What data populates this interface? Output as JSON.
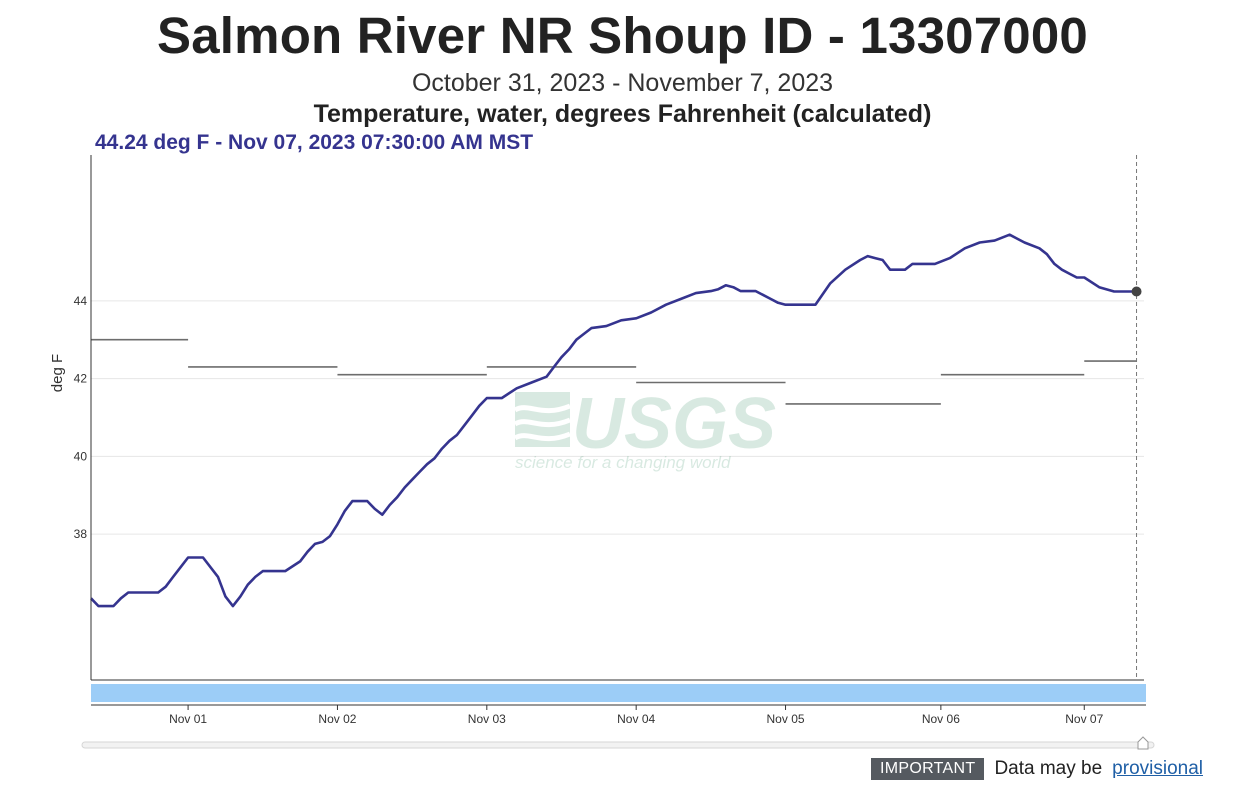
{
  "header": {
    "title": "Salmon River NR Shoup ID - 13307000",
    "date_range": "October 31, 2023 - November 7, 2023",
    "parameter": "Temperature, water, degrees Fahrenheit (calculated)"
  },
  "hover": {
    "readout": "44.24 deg F - Nov 07, 2023 07:30:00 AM MST"
  },
  "watermark": {
    "logo": "USGS",
    "tagline": "science for a changing world"
  },
  "footer": {
    "badge": "IMPORTANT",
    "text": "Data may be",
    "link": "provisional"
  },
  "colors": {
    "series": "#35348f",
    "median": "#6d6d6d",
    "brush": "#9ccdf7",
    "grid": "#e6e6e6"
  },
  "chart_data": {
    "type": "line",
    "title": "Salmon River NR Shoup ID - 13307000",
    "ylabel": "deg F",
    "xlim": [
      -0.65,
      6.4
    ],
    "ylim": [
      34.25,
      47.75
    ],
    "yticks": [
      38,
      40,
      42,
      44
    ],
    "xticks": [
      {
        "v": 0,
        "label": "Nov 01"
      },
      {
        "v": 1,
        "label": "Nov 02"
      },
      {
        "v": 2,
        "label": "Nov 03"
      },
      {
        "v": 3,
        "label": "Nov 04"
      },
      {
        "v": 4,
        "label": "Nov 05"
      },
      {
        "v": 5.04,
        "label": "Nov 06"
      },
      {
        "v": 6,
        "label": "Nov 07"
      }
    ],
    "grid": true,
    "series": [
      {
        "x": [
          -0.65,
          -0.6,
          -0.5,
          -0.45,
          -0.4,
          -0.3,
          -0.2,
          -0.15,
          -0.1,
          -0.05,
          0,
          0.1,
          0.2,
          0.25,
          0.3,
          0.35,
          0.4,
          0.45,
          0.5,
          0.55,
          0.65,
          0.75,
          0.8,
          0.85,
          0.9,
          0.95,
          1.0,
          1.05,
          1.1,
          1.15,
          1.2,
          1.25,
          1.3,
          1.35,
          1.4,
          1.45,
          1.5,
          1.55,
          1.6,
          1.65,
          1.7,
          1.75,
          1.8,
          1.85,
          1.9,
          1.95,
          2.0,
          2.1,
          2.2,
          2.3,
          2.4,
          2.45,
          2.5,
          2.55,
          2.6,
          2.65,
          2.7,
          2.8,
          2.9,
          3.0,
          3.1,
          3.2,
          3.3,
          3.4,
          3.5,
          3.55,
          3.6,
          3.65,
          3.7,
          3.75,
          3.8,
          3.9,
          3.95,
          4.0,
          4.05,
          4.1,
          4.2,
          4.3,
          4.4,
          4.5,
          4.55,
          4.6,
          4.65,
          4.7,
          4.8,
          4.85,
          4.9,
          5.0,
          5.1,
          5.2,
          5.3,
          5.4,
          5.5,
          5.6,
          5.7,
          5.75,
          5.8,
          5.85,
          5.9,
          5.95,
          6.0,
          6.1,
          6.2,
          6.25,
          6.3,
          6.35
        ],
        "y": [
          36.35,
          36.15,
          36.15,
          36.35,
          36.5,
          36.5,
          36.5,
          36.65,
          36.9,
          37.15,
          37.4,
          37.4,
          36.9,
          36.4,
          36.15,
          36.4,
          36.7,
          36.9,
          37.05,
          37.05,
          37.05,
          37.3,
          37.55,
          37.75,
          37.8,
          37.95,
          38.25,
          38.6,
          38.85,
          38.85,
          38.85,
          38.65,
          38.5,
          38.75,
          38.95,
          39.2,
          39.4,
          39.6,
          39.8,
          39.95,
          40.2,
          40.4,
          40.55,
          40.8,
          41.05,
          41.3,
          41.5,
          41.5,
          41.75,
          41.9,
          42.05,
          42.3,
          42.55,
          42.75,
          43.0,
          43.15,
          43.3,
          43.35,
          43.5,
          43.55,
          43.7,
          43.9,
          44.05,
          44.2,
          44.25,
          44.3,
          44.4,
          44.35,
          44.25,
          44.25,
          44.25,
          44.05,
          43.95,
          43.9,
          43.9,
          43.9,
          43.9,
          44.45,
          44.8,
          45.05,
          45.15,
          45.1,
          45.05,
          44.8,
          44.8,
          44.95,
          44.95,
          44.95,
          45.1,
          45.35,
          45.5,
          45.55,
          45.7,
          45.5,
          45.35,
          45.2,
          44.95,
          44.8,
          44.7,
          44.6,
          44.6,
          44.35,
          44.24,
          44.24,
          44.24,
          44.24
        ]
      }
    ],
    "medians": [
      {
        "x0": -0.65,
        "x1": 0,
        "y": 43.0
      },
      {
        "x0": 0,
        "x1": 1.0,
        "y": 42.3
      },
      {
        "x0": 1.0,
        "x1": 2.0,
        "y": 42.1
      },
      {
        "x0": 2.0,
        "x1": 3.0,
        "y": 42.3
      },
      {
        "x0": 3.0,
        "x1": 4.0,
        "y": 41.9
      },
      {
        "x0": 4.0,
        "x1": 5.04,
        "y": 41.35
      },
      {
        "x0": 5.04,
        "x1": 6.0,
        "y": 42.1
      },
      {
        "x0": 6.0,
        "x1": 6.35,
        "y": 42.45
      }
    ],
    "hover_point": {
      "x": 6.35,
      "y": 44.24
    }
  }
}
